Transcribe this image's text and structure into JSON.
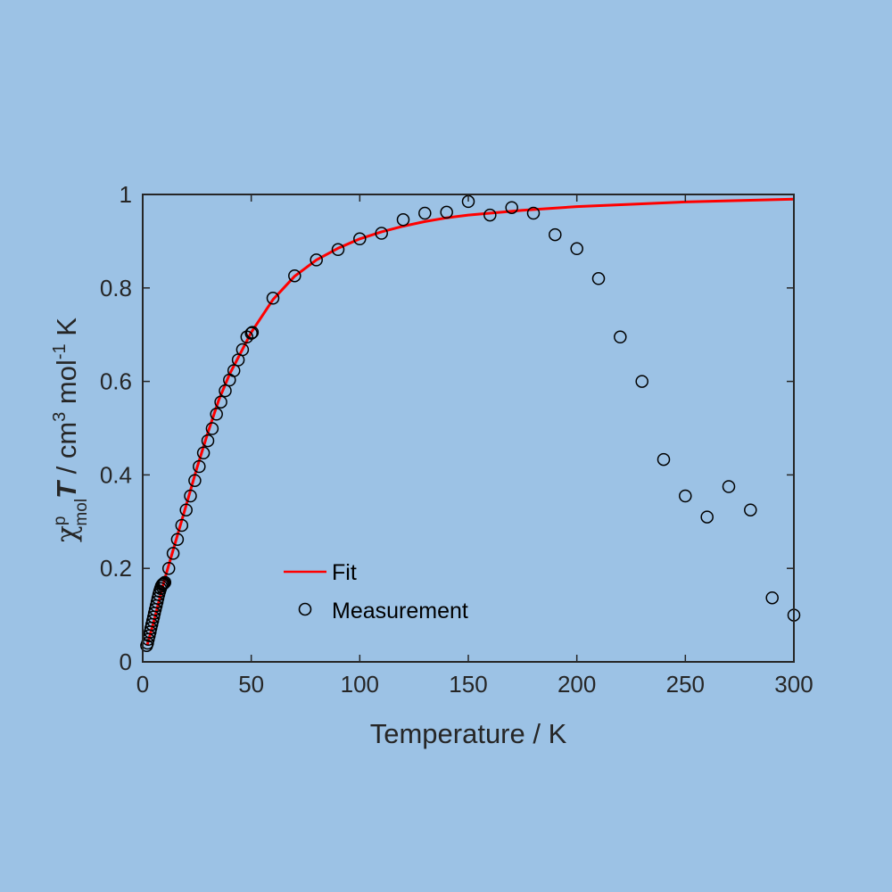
{
  "chart_data": {
    "type": "scatter",
    "xlabel": "Temperature / K",
    "ylabel": {
      "chi": "χ",
      "sup_p": "p",
      "sub_mol": "mol",
      "T": "T",
      "unit_a": " / cm",
      "sup_3": "3",
      "unit_b": " mol",
      "sup_m1": "-1",
      "unit_c": " K"
    },
    "xlim": [
      0,
      300
    ],
    "ylim": [
      0,
      1
    ],
    "xticks": [
      "0",
      "50",
      "100",
      "150",
      "200",
      "250",
      "300"
    ],
    "yticks": [
      "0",
      "0.2",
      "0.4",
      "0.6",
      "0.8",
      "1"
    ],
    "grid": false,
    "legend_position": "lower-left",
    "colors": {
      "fit": "#ff0000",
      "measurement": "#000000",
      "background": "#9cc2e5"
    },
    "series": [
      {
        "name": "Fit",
        "style": "line",
        "x": [
          2,
          5,
          10,
          15,
          20,
          25,
          30,
          35,
          40,
          45,
          50,
          60,
          70,
          80,
          90,
          100,
          110,
          120,
          130,
          140,
          150,
          175,
          200,
          250,
          300
        ],
        "y": [
          0.035,
          0.085,
          0.175,
          0.255,
          0.335,
          0.415,
          0.49,
          0.56,
          0.615,
          0.66,
          0.705,
          0.775,
          0.825,
          0.86,
          0.885,
          0.905,
          0.92,
          0.932,
          0.942,
          0.95,
          0.956,
          0.966,
          0.974,
          0.984,
          0.99
        ]
      },
      {
        "name": "Measurement",
        "style": "markers",
        "x": [
          1.8,
          2.2,
          2.6,
          3,
          3.4,
          3.8,
          4.2,
          4.6,
          5,
          5.4,
          5.8,
          6.2,
          6.6,
          7,
          7.4,
          7.8,
          8.2,
          8.6,
          9,
          9.4,
          9.8,
          10.2,
          12,
          14,
          16,
          18,
          20,
          22,
          24,
          26,
          28,
          30,
          32,
          34,
          36,
          38,
          40,
          42,
          44,
          46,
          48,
          50,
          50.5,
          60,
          70,
          80,
          90,
          100,
          110,
          120,
          130,
          140,
          150,
          160,
          170,
          180,
          190,
          200,
          210,
          220,
          230,
          240,
          250,
          260,
          270,
          280,
          290,
          300
        ],
        "y": [
          0.035,
          0.04,
          0.048,
          0.056,
          0.064,
          0.072,
          0.08,
          0.088,
          0.096,
          0.104,
          0.112,
          0.12,
          0.128,
          0.136,
          0.144,
          0.151,
          0.157,
          0.162,
          0.165,
          0.167,
          0.168,
          0.17,
          0.2,
          0.232,
          0.262,
          0.292,
          0.325,
          0.355,
          0.388,
          0.418,
          0.447,
          0.473,
          0.499,
          0.53,
          0.556,
          0.58,
          0.603,
          0.623,
          0.646,
          0.668,
          0.695,
          0.703,
          0.705,
          0.778,
          0.826,
          0.86,
          0.882,
          0.905,
          0.917,
          0.946,
          0.96,
          0.962,
          0.985,
          0.956,
          0.972,
          0.96,
          0.914,
          0.884,
          0.82,
          0.695,
          0.6,
          0.433,
          0.355,
          0.31,
          0.375,
          0.325,
          0.137,
          0.1
        ]
      }
    ]
  }
}
